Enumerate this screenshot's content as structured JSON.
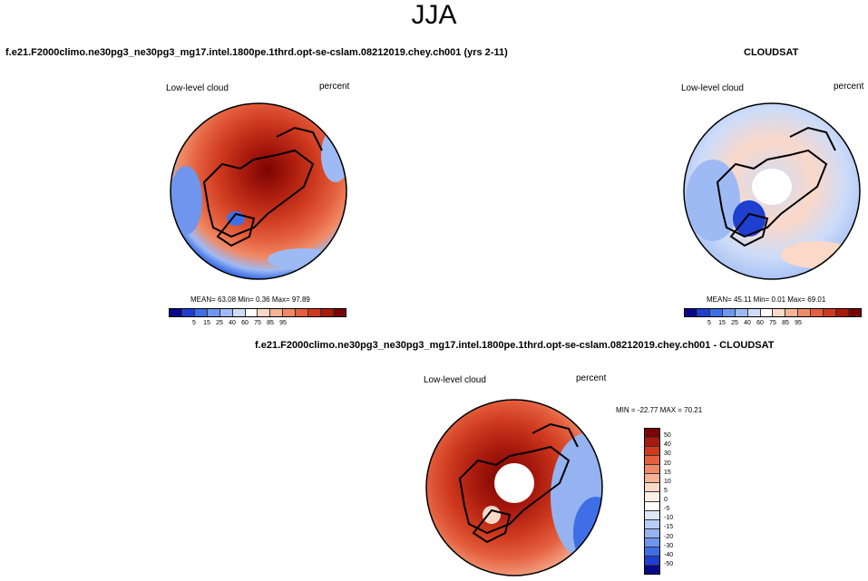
{
  "season": "JJA",
  "run_title": "f.e21.F2000climo.ne30pg3_ne30pg3_mg17.intel.1800pe.1thrd.opt-se-cslam.08212019.chey.ch001 (yrs 2-11)",
  "obs_title": "CLOUDSAT",
  "diff_title": "f.e21.F2000climo.ne30pg3_ne30pg3_mg17.intel.1800pe.1thrd.opt-se-cslam.08212019.chey.ch001 - CLOUDSAT",
  "panels": {
    "model": {
      "variable": "Low-level cloud",
      "units": "percent",
      "stats": "MEAN=  63.08  Min=   0.36  Max=  97.89"
    },
    "obs": {
      "variable": "Low-level cloud",
      "units": "percent",
      "stats": "MEAN=  45.11  Min=   0.01  Max=  69.01"
    },
    "diff": {
      "variable": "Low-level cloud",
      "units": "percent",
      "stats": "MIN = -22.77 MAX =  70.21"
    }
  },
  "abs_colorbar": {
    "colors": [
      "#08088c",
      "#1e3fd0",
      "#3f6fe6",
      "#6f95ee",
      "#9ebaf4",
      "#cddcf8",
      "#ffffff",
      "#fbd8c8",
      "#f6b396",
      "#f08a66",
      "#e4603e",
      "#cf3a1f",
      "#a81a0d",
      "#7a0403"
    ],
    "ticks": [
      "5",
      "15",
      "25",
      "40",
      "60",
      "75",
      "85",
      "95"
    ]
  },
  "diff_colorbar": {
    "colors": [
      "#7a0403",
      "#a81a0d",
      "#cf3a1f",
      "#e4603e",
      "#f08a66",
      "#f6b396",
      "#fbd8c8",
      "#fdeee6",
      "#ffffff",
      "#dde7fa",
      "#b8cdf5",
      "#94b3f0",
      "#6f95ee",
      "#3f6fe6",
      "#1e3fd0",
      "#08088c"
    ],
    "ticks": [
      "50",
      "40",
      "30",
      "20",
      "15",
      "10",
      "5",
      "0",
      "-5",
      "-10",
      "-15",
      "-20",
      "-30",
      "-40",
      "-50"
    ]
  }
}
